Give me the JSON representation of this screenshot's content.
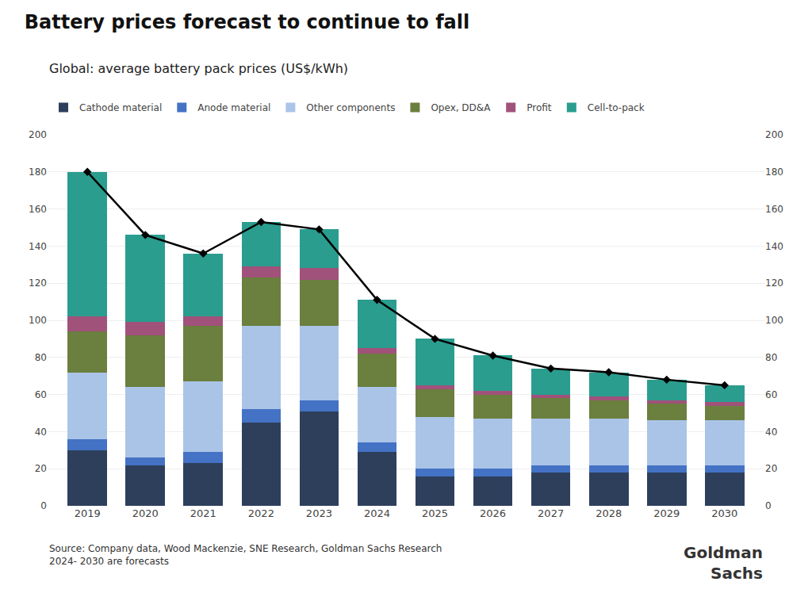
{
  "chart_data": {
    "type": "bar",
    "stacked": true,
    "title": "Battery prices forecast to continue to fall",
    "subtitle": "Global: average battery pack prices (US$/kWh)",
    "annotations": [
      "Source: Company data, Wood Mackenzie, SNE Research, Goldman Sachs Research\n2024- 2030 are forecasts",
      "Goldman\nSachs"
    ],
    "categories": [
      "2019",
      "2020",
      "2021",
      "2022",
      "2023",
      "2024",
      "2025",
      "2026",
      "2027",
      "2028",
      "2029",
      "2030"
    ],
    "series": [
      {
        "name": "Cathode material",
        "color": "#2e3f5c",
        "values": [
          30,
          22,
          23,
          45,
          51,
          29,
          16,
          16,
          18,
          18,
          18,
          18
        ]
      },
      {
        "name": "Anode material",
        "color": "#4472c4",
        "values": [
          6,
          4,
          6,
          7,
          6,
          5,
          4,
          4,
          4,
          4,
          4,
          4
        ]
      },
      {
        "name": "Other components",
        "color": "#aac4e8",
        "values": [
          36,
          38,
          38,
          45,
          40,
          30,
          28,
          27,
          25,
          25,
          24,
          24
        ]
      },
      {
        "name": "Opex, DD&A",
        "color": "#6b7f3e",
        "values": [
          22,
          28,
          30,
          26,
          25,
          18,
          15,
          13,
          11,
          10,
          9,
          8
        ]
      },
      {
        "name": "Profit",
        "color": "#a0527a",
        "values": [
          8,
          7,
          5,
          6,
          6,
          3,
          2,
          2,
          2,
          2,
          2,
          2
        ]
      },
      {
        "name": "Cell-to-pack",
        "color": "#2a9d8f",
        "values": [
          78,
          47,
          34,
          24,
          21,
          26,
          25,
          19,
          14,
          13,
          11,
          9
        ]
      },
      {
        "type": "line",
        "color": "#000000",
        "marker": "diamond",
        "line_style": "solid",
        "values": [
          180,
          146,
          136,
          153,
          149,
          111,
          90,
          81,
          74,
          72,
          68,
          65
        ]
      }
    ],
    "ylim": [
      0,
      200
    ],
    "yticks": [
      0,
      20,
      40,
      60,
      80,
      100,
      120,
      140,
      160,
      180,
      200
    ],
    "y2lim": [
      0,
      200
    ],
    "y2ticks": [
      0,
      20,
      40,
      60,
      80,
      100,
      120,
      140,
      160,
      180,
      200
    ],
    "grid": true,
    "legend": "top left"
  }
}
